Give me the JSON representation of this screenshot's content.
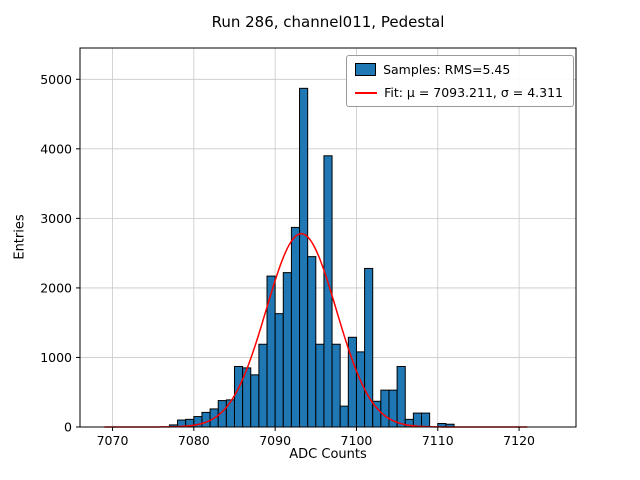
{
  "chart_data": {
    "type": "bar",
    "title": "Run 286, channel011, Pedestal",
    "xlabel": "ADC Counts",
    "ylabel": "Entries",
    "xlim": [
      7066,
      7127
    ],
    "ylim": [
      0,
      5450
    ],
    "xticks": [
      7070,
      7080,
      7090,
      7100,
      7110,
      7120
    ],
    "yticks": [
      0,
      1000,
      2000,
      3000,
      4000,
      5000
    ],
    "grid": true,
    "bar_color": "#1f77b4",
    "bar_edge_color": "#000000",
    "bin_width": 1,
    "bars": {
      "bin_left_edges": [
        7077,
        7078,
        7079,
        7080,
        7081,
        7082,
        7083,
        7084,
        7085,
        7086,
        7087,
        7088,
        7089,
        7090,
        7091,
        7092,
        7093,
        7094,
        7095,
        7096,
        7097,
        7098,
        7099,
        7100,
        7101,
        7102,
        7103,
        7104,
        7105,
        7106,
        7107,
        7108,
        7110,
        7111
      ],
      "counts": [
        30,
        100,
        110,
        150,
        210,
        260,
        380,
        390,
        870,
        850,
        750,
        1190,
        2170,
        1630,
        2220,
        2870,
        4870,
        2450,
        1190,
        3900,
        1190,
        300,
        1290,
        1080,
        2280,
        370,
        530,
        530,
        870,
        110,
        200,
        200,
        50,
        40
      ]
    },
    "fit": {
      "type": "gaussian",
      "mu": 7093.211,
      "sigma": 4.311,
      "amplitude": 2780,
      "x_range": [
        7069,
        7121
      ],
      "color": "#ff0000"
    },
    "legend": [
      {
        "label": "Samples: RMS=5.45",
        "swatch": "patch",
        "color": "#1f77b4"
      },
      {
        "label": "Fit: μ = 7093.211, σ = 4.311",
        "swatch": "line",
        "color": "#ff0000"
      }
    ],
    "legend_position": "upper right",
    "rms": 5.45
  }
}
